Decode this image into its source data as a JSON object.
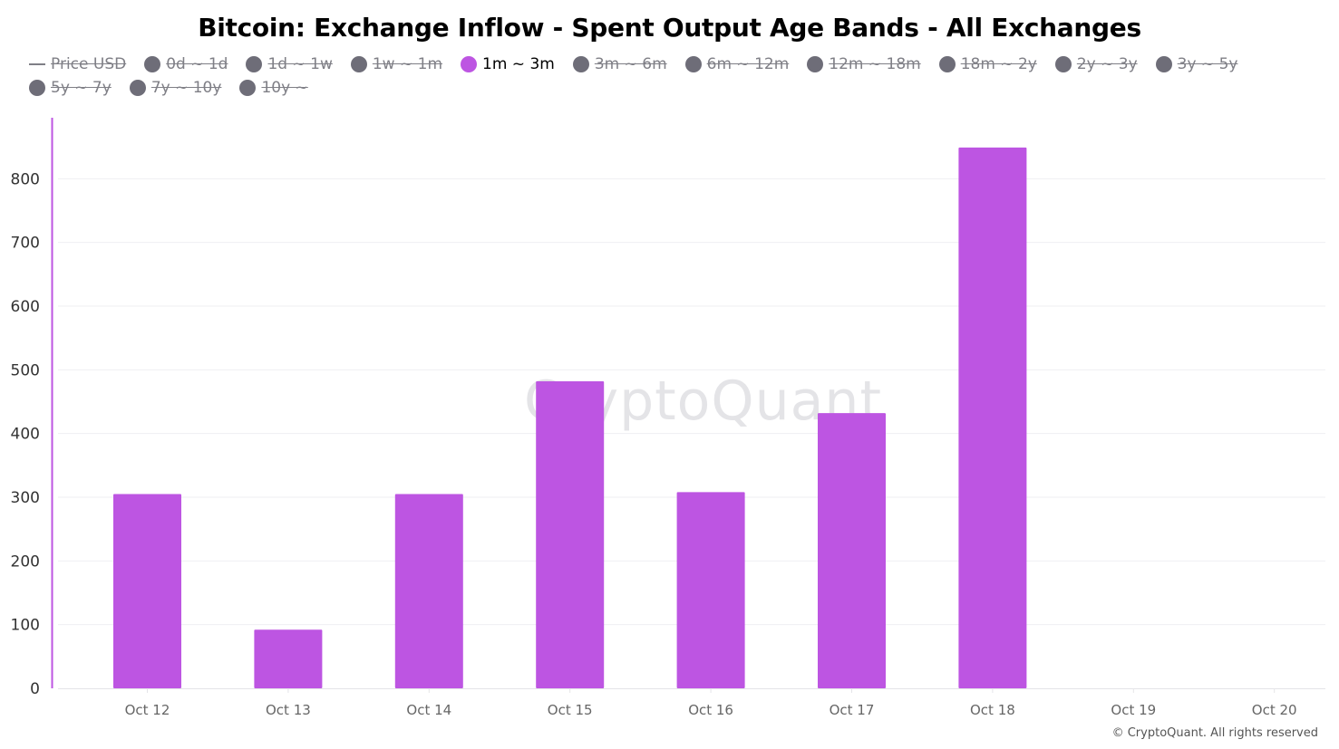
{
  "chart_data": {
    "type": "bar",
    "title": "Bitcoin: Exchange Inflow - Spent Output Age Bands - All Exchanges",
    "categories": [
      "Oct 12",
      "Oct 13",
      "Oct 14",
      "Oct 15",
      "Oct 16",
      "Oct 17",
      "Oct 18",
      "Oct 19",
      "Oct 20"
    ],
    "series": [
      {
        "name": "1m ~ 3m",
        "color": "#bd55e2",
        "values": [
          305,
          92,
          305,
          482,
          308,
          432,
          849,
          null,
          null
        ]
      }
    ],
    "yticks": [
      0,
      100,
      200,
      300,
      400,
      500,
      600,
      700,
      800
    ],
    "ylim": [
      0,
      900
    ],
    "grid": true,
    "legend_position": "top",
    "legend": [
      {
        "label": "Price USD",
        "type": "line",
        "enabled": false,
        "color": "#7f7f86"
      },
      {
        "label": "0d ~ 1d",
        "type": "dot",
        "enabled": false,
        "color": "#6e6d78"
      },
      {
        "label": "1d ~ 1w",
        "type": "dot",
        "enabled": false,
        "color": "#6e6d78"
      },
      {
        "label": "1w ~ 1m",
        "type": "dot",
        "enabled": false,
        "color": "#6e6d78"
      },
      {
        "label": "1m ~ 3m",
        "type": "dot",
        "enabled": true,
        "color": "#bd55e2"
      },
      {
        "label": "3m ~ 6m",
        "type": "dot",
        "enabled": false,
        "color": "#6e6d78"
      },
      {
        "label": "6m ~ 12m",
        "type": "dot",
        "enabled": false,
        "color": "#6e6d78"
      },
      {
        "label": "12m ~ 18m",
        "type": "dot",
        "enabled": false,
        "color": "#6e6d78"
      },
      {
        "label": "18m ~ 2y",
        "type": "dot",
        "enabled": false,
        "color": "#6e6d78"
      },
      {
        "label": "2y ~ 3y",
        "type": "dot",
        "enabled": false,
        "color": "#6e6d78"
      },
      {
        "label": "3y ~ 5y",
        "type": "dot",
        "enabled": false,
        "color": "#6e6d78"
      },
      {
        "label": "5y ~ 7y",
        "type": "dot",
        "enabled": false,
        "color": "#6e6d78"
      },
      {
        "label": "7y ~ 10y",
        "type": "dot",
        "enabled": false,
        "color": "#6e6d78"
      },
      {
        "label": "10y ~",
        "type": "dot",
        "enabled": false,
        "color": "#6e6d78"
      }
    ]
  },
  "watermark": "CryptoQuant",
  "copyright": "© CryptoQuant. All rights reserved",
  "colors": {
    "accent": "#bd55e2",
    "disabled": "#6e6d78",
    "grid": "#efeff2",
    "axis_text": "#333333",
    "x_axis_text": "#666666"
  }
}
